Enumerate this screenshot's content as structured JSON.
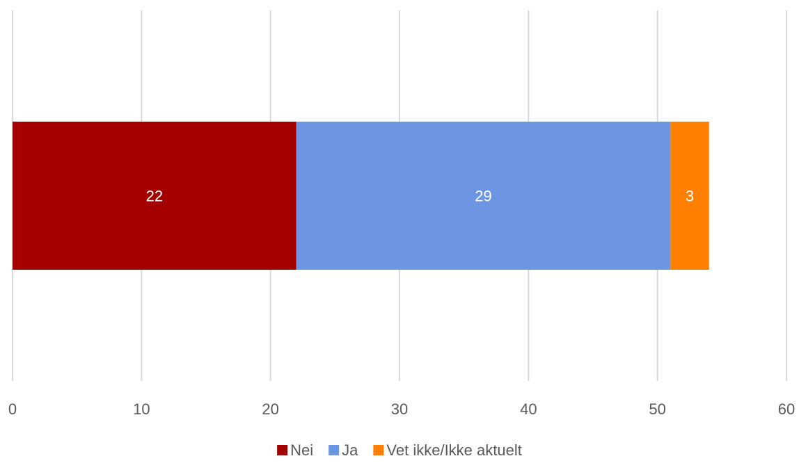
{
  "chart_data": {
    "type": "bar",
    "orientation": "horizontal",
    "stacked": true,
    "categories": [
      ""
    ],
    "series": [
      {
        "name": "Nei",
        "values": [
          22
        ],
        "color": "#A50000"
      },
      {
        "name": "Ja",
        "values": [
          29
        ],
        "color": "#6D96E2"
      },
      {
        "name": "Vet ikke/Ikke aktuelt",
        "values": [
          3
        ],
        "color": "#FF8000"
      }
    ],
    "xlim": [
      0,
      60
    ],
    "xticks": [
      0,
      10,
      20,
      30,
      40,
      50,
      60
    ],
    "xtick_labels": [
      "0",
      "10",
      "20",
      "30",
      "40",
      "50",
      "60"
    ],
    "data_labels": [
      "22",
      "29",
      "3"
    ],
    "grid": "vertical",
    "legend": "bottom",
    "title": "",
    "xlabel": "",
    "ylabel": ""
  }
}
